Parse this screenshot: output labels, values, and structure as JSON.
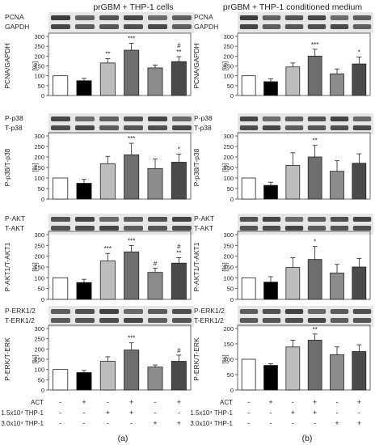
{
  "panels": [
    {
      "id": "a",
      "title": "prGBM + THP-1 cells",
      "label": "(a)",
      "blots": [
        {
          "top": "PCNA",
          "bottom": "GAPDH"
        },
        {
          "top": "P-p38",
          "bottom": "T-p38"
        },
        {
          "top": "P-AKT",
          "bottom": "T-AKT"
        },
        {
          "top": "P-ERK1/2",
          "bottom": "T-ERK1/2"
        }
      ]
    },
    {
      "id": "b",
      "title": "prGBM + THP-1 conditioned medium",
      "label": "(b)",
      "blots": [
        {
          "top": "PCNA",
          "bottom": "GAPDH"
        },
        {
          "top": "P-p38",
          "bottom": "T-p38"
        },
        {
          "top": "P-AKT",
          "bottom": "T-AKT"
        },
        {
          "top": "P-ERK1/2",
          "bottom": "T-ERK1/2"
        }
      ]
    }
  ],
  "treatments": {
    "rows": [
      {
        "label": "ACT",
        "signs": [
          "-",
          "+",
          "-",
          "+",
          "-",
          "+"
        ]
      },
      {
        "label": "1.5x10⁴ THP-1",
        "signs": [
          "-",
          "-",
          "+",
          "+",
          "-",
          "-"
        ]
      },
      {
        "label": "3.0x10⁴ THP-1",
        "signs": [
          "-",
          "-",
          "-",
          "-",
          "+",
          "+"
        ]
      }
    ]
  },
  "chart_data": [
    {
      "type": "bar",
      "panel": "a",
      "ylabel": "PCNA/GAPDH",
      "unit": "[%]",
      "ylim": [
        0,
        300
      ],
      "yticks": [
        0,
        50,
        100,
        150,
        200,
        250,
        300
      ],
      "series": [
        {
          "values": [
            100,
            75,
            165,
            230,
            140,
            172
          ]
        }
      ],
      "errors": [
        0,
        12,
        22,
        35,
        15,
        25
      ],
      "annotations": [
        "",
        "",
        "**",
        "***",
        "",
        "#\n**"
      ],
      "bar_colors": [
        "#ffffff",
        "#000000",
        "#bdbdbd",
        "#6e6e6e",
        "#8c8c8c",
        "#4a4a4a"
      ]
    },
    {
      "type": "bar",
      "panel": "a",
      "ylabel": "P-p38/T-p38",
      "unit": "[%]",
      "ylim": [
        0,
        300
      ],
      "yticks": [
        0,
        50,
        100,
        150,
        200,
        250,
        300
      ],
      "series": [
        {
          "values": [
            100,
            75,
            168,
            210,
            145,
            175
          ]
        }
      ],
      "errors": [
        0,
        18,
        35,
        55,
        45,
        38
      ],
      "annotations": [
        "",
        "",
        "",
        "***",
        "",
        "*"
      ],
      "bar_colors": [
        "#ffffff",
        "#000000",
        "#bdbdbd",
        "#6e6e6e",
        "#8c8c8c",
        "#4a4a4a"
      ]
    },
    {
      "type": "bar",
      "panel": "a",
      "ylabel": "P-AKT1/T-AKT1",
      "unit": "[%]",
      "ylim": [
        0,
        300
      ],
      "yticks": [
        0,
        50,
        100,
        150,
        200,
        250,
        300
      ],
      "series": [
        {
          "values": [
            100,
            78,
            178,
            220,
            125,
            168
          ]
        }
      ],
      "errors": [
        0,
        15,
        35,
        30,
        20,
        25
      ],
      "annotations": [
        "",
        "",
        "***",
        "***",
        "#",
        "#\n**"
      ],
      "bar_colors": [
        "#ffffff",
        "#000000",
        "#bdbdbd",
        "#6e6e6e",
        "#8c8c8c",
        "#4a4a4a"
      ]
    },
    {
      "type": "bar",
      "panel": "a",
      "ylabel": "P-ERK/T-ERK",
      "unit": "[%]",
      "ylim": [
        0,
        300
      ],
      "yticks": [
        0,
        50,
        100,
        150,
        200,
        250,
        300
      ],
      "series": [
        {
          "values": [
            100,
            85,
            140,
            195,
            112,
            140
          ]
        }
      ],
      "errors": [
        0,
        10,
        22,
        35,
        10,
        30
      ],
      "annotations": [
        "",
        "",
        "",
        "***",
        "",
        "#"
      ],
      "bar_colors": [
        "#ffffff",
        "#000000",
        "#bdbdbd",
        "#6e6e6e",
        "#8c8c8c",
        "#4a4a4a"
      ]
    },
    {
      "type": "bar",
      "panel": "b",
      "ylabel": "PCNA/GAPDH",
      "unit": "[%]",
      "ylim": [
        0,
        300
      ],
      "yticks": [
        0,
        50,
        100,
        150,
        200,
        250,
        300
      ],
      "series": [
        {
          "values": [
            100,
            70,
            145,
            200,
            110,
            160
          ]
        }
      ],
      "errors": [
        0,
        15,
        20,
        35,
        25,
        35
      ],
      "annotations": [
        "",
        "",
        "",
        "***",
        "",
        "*"
      ],
      "bar_colors": [
        "#ffffff",
        "#000000",
        "#bdbdbd",
        "#6e6e6e",
        "#8c8c8c",
        "#4a4a4a"
      ]
    },
    {
      "type": "bar",
      "panel": "b",
      "ylabel": "P-p38/T-p38",
      "unit": "[%]",
      "ylim": [
        0,
        300
      ],
      "yticks": [
        0,
        50,
        100,
        150,
        200,
        250,
        300
      ],
      "series": [
        {
          "values": [
            100,
            65,
            160,
            200,
            132,
            170
          ]
        }
      ],
      "errors": [
        0,
        15,
        60,
        55,
        50,
        45
      ],
      "annotations": [
        "",
        "",
        "",
        "**",
        "",
        ""
      ],
      "bar_colors": [
        "#ffffff",
        "#000000",
        "#bdbdbd",
        "#6e6e6e",
        "#8c8c8c",
        "#4a4a4a"
      ]
    },
    {
      "type": "bar",
      "panel": "b",
      "ylabel": "P-AKT1/T-AKT1",
      "unit": "[%]",
      "ylim": [
        0,
        300
      ],
      "yticks": [
        0,
        50,
        100,
        150,
        200,
        250,
        300
      ],
      "series": [
        {
          "values": [
            100,
            80,
            148,
            185,
            122,
            150
          ]
        }
      ],
      "errors": [
        0,
        25,
        45,
        60,
        40,
        40
      ],
      "annotations": [
        "",
        "",
        "",
        "*",
        "",
        ""
      ],
      "bar_colors": [
        "#ffffff",
        "#000000",
        "#bdbdbd",
        "#6e6e6e",
        "#8c8c8c",
        "#4a4a4a"
      ]
    },
    {
      "type": "bar",
      "panel": "b",
      "ylabel": "P-ERK/T-ERK",
      "unit": "[%]",
      "ylim": [
        0,
        200
      ],
      "yticks": [
        0,
        50,
        100,
        150,
        200
      ],
      "series": [
        {
          "values": [
            100,
            80,
            140,
            162,
            115,
            125
          ]
        }
      ],
      "errors": [
        0,
        5,
        22,
        20,
        25,
        22
      ],
      "annotations": [
        "",
        "",
        "",
        "**",
        "",
        ""
      ],
      "bar_colors": [
        "#ffffff",
        "#000000",
        "#bdbdbd",
        "#6e6e6e",
        "#8c8c8c",
        "#4a4a4a"
      ]
    }
  ]
}
